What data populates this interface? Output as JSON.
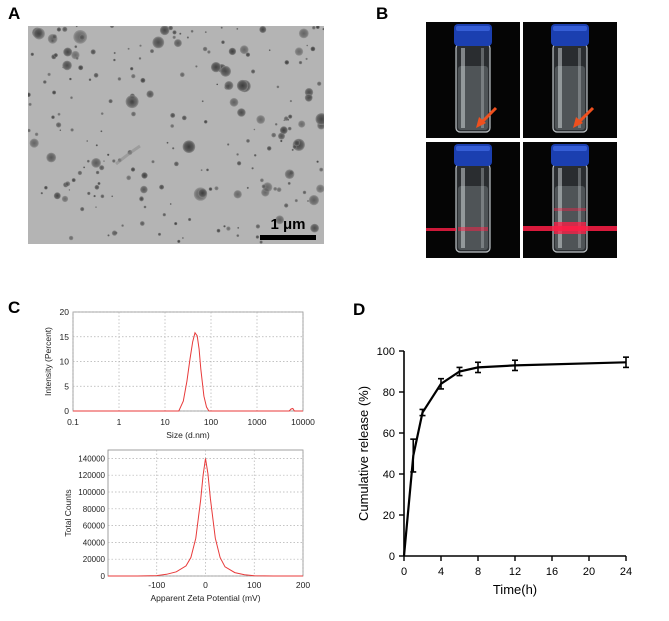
{
  "panels": {
    "a": {
      "letter": "A",
      "scale_bar_label": "1 μm"
    },
    "b": {
      "letter": "B"
    },
    "c": {
      "letter": "C"
    },
    "d": {
      "letter": "D"
    }
  },
  "colors": {
    "tem_background": "#b4b4b4",
    "particle": "#5a5a5a",
    "vial_cap": "#1b3fb0",
    "arrow": "#f0501e",
    "laser": "#ff1e46",
    "dls_curve": "#e83a3a",
    "grid": "#b0b0b0",
    "release_line": "#000000"
  },
  "chart_data": [
    {
      "id": "dls-size",
      "type": "line",
      "title": "",
      "xlabel": "Size (d.nm)",
      "ylabel": "Intensity (Percent)",
      "x_scale": "log",
      "xlim": [
        0.1,
        10000
      ],
      "ylim": [
        0,
        20
      ],
      "x_ticks": [
        "0.1",
        "1",
        "10",
        "100",
        "1000",
        "10000"
      ],
      "y_ticks": [
        "0",
        "5",
        "10",
        "15",
        "20"
      ],
      "grid": true,
      "series": [
        {
          "x": [
            20,
            25,
            30,
            35,
            40,
            45,
            50,
            55,
            60,
            70,
            80,
            90,
            5000,
            5500,
            6000,
            6500
          ],
          "y": [
            0,
            2,
            6,
            10.5,
            14,
            15.8,
            15.2,
            12.5,
            8.5,
            3,
            0.8,
            0,
            0,
            0.4,
            0.5,
            0
          ]
        }
      ]
    },
    {
      "id": "zeta",
      "type": "line",
      "title": "",
      "xlabel": "Apparent Zeta Potential (mV)",
      "ylabel": "Total Counts",
      "xlim": [
        -200,
        200
      ],
      "ylim": [
        0,
        150000
      ],
      "x_ticks": [
        "-100",
        "0",
        "100",
        "200"
      ],
      "y_ticks": [
        "0",
        "20000",
        "40000",
        "60000",
        "80000",
        "100000",
        "120000",
        "140000"
      ],
      "grid": true,
      "series": [
        {
          "x": [
            -140,
            -100,
            -80,
            -60,
            -40,
            -30,
            -20,
            -10,
            -5,
            0,
            5,
            10,
            20,
            30,
            40,
            60,
            80,
            100,
            140
          ],
          "y": [
            0,
            500,
            2000,
            5000,
            12000,
            22000,
            45000,
            90000,
            120000,
            140000,
            122000,
            92000,
            45000,
            22000,
            11000,
            4000,
            1500,
            400,
            0
          ]
        }
      ]
    },
    {
      "id": "release",
      "type": "line",
      "title": "",
      "xlabel": "Time(h)",
      "ylabel": "Cumulative release (%)",
      "xlim": [
        0,
        24
      ],
      "ylim": [
        0,
        100
      ],
      "x_ticks": [
        "0",
        "4",
        "8",
        "12",
        "16",
        "20",
        "24"
      ],
      "y_ticks": [
        "0",
        "20",
        "40",
        "60",
        "80",
        "100"
      ],
      "grid": false,
      "series": [
        {
          "x": [
            0,
            1,
            2,
            4,
            6,
            8,
            12,
            24
          ],
          "y": [
            0,
            49,
            70,
            84,
            90,
            92,
            93,
            94.5
          ],
          "error": [
            0,
            8,
            1.5,
            2.5,
            2,
            2.5,
            2.5,
            2.5
          ]
        }
      ]
    }
  ]
}
